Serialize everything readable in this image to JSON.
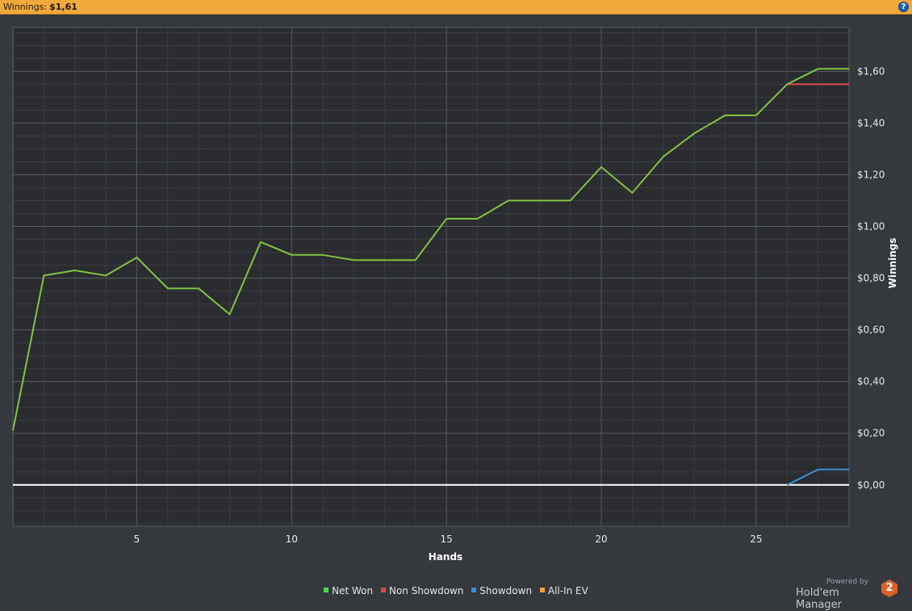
{
  "header": {
    "title_label": "Winnings:",
    "title_value": "$1,61",
    "help_symbol": "?"
  },
  "colors": {
    "header_bg": "#f2a93b",
    "plot_bg": "#2a2c30",
    "panel_bg": "#35383d",
    "net_won": "#84c341",
    "non_showdown": "#e0484f",
    "showdown": "#3d8fd4",
    "all_in_ev": "#f0a13a",
    "zero_line": "#ffffff"
  },
  "chart_data": {
    "type": "line",
    "xlabel": "Hands",
    "ylabel": "Winnings",
    "xlim": [
      1,
      28
    ],
    "ylim": [
      -0.16,
      1.77
    ],
    "x_ticks": [
      5,
      10,
      15,
      20,
      25
    ],
    "y_ticks": [
      0,
      0.2,
      0.4,
      0.6,
      0.8,
      1.0,
      1.2,
      1.4,
      1.6
    ],
    "y_tick_labels": [
      "$0,00",
      "$0,20",
      "$0,40",
      "$0,60",
      "$0,80",
      "$1,00",
      "$1,20",
      "$1,40",
      "$1,60"
    ],
    "y_axis_position": "right",
    "grid": true,
    "zero_line": true,
    "legend_position": "bottom",
    "series": [
      {
        "name": "Net Won",
        "x": [
          1,
          2,
          3,
          4,
          5,
          6,
          7,
          8,
          9,
          10,
          11,
          12,
          13,
          14,
          15,
          16,
          17,
          18,
          19,
          20,
          21,
          22,
          23,
          24,
          25,
          26,
          27,
          28
        ],
        "values": [
          0.21,
          0.81,
          0.83,
          0.81,
          0.88,
          0.76,
          0.76,
          0.66,
          0.94,
          0.89,
          0.89,
          0.87,
          0.87,
          0.87,
          1.03,
          1.03,
          1.1,
          1.1,
          1.1,
          1.23,
          1.13,
          1.27,
          1.36,
          1.43,
          1.43,
          1.55,
          1.61,
          1.61
        ]
      },
      {
        "name": "Non Showdown",
        "x": [
          26,
          27,
          28
        ],
        "values": [
          1.55,
          1.55,
          1.55
        ]
      },
      {
        "name": "Showdown",
        "x": [
          26,
          27,
          28
        ],
        "values": [
          0.0,
          0.06,
          0.06
        ]
      },
      {
        "name": "All-In EV",
        "x": [],
        "values": []
      }
    ]
  },
  "legend": [
    {
      "label": "Net Won",
      "color": "#3ee04a"
    },
    {
      "label": "Non Showdown",
      "color": "#e0484f"
    },
    {
      "label": "Showdown",
      "color": "#3d8fd4"
    },
    {
      "label": "All-In EV",
      "color": "#f0a13a"
    }
  ],
  "branding": {
    "powered_by": "Powered by",
    "product": "Hold'em Manager",
    "version_badge": "2"
  }
}
